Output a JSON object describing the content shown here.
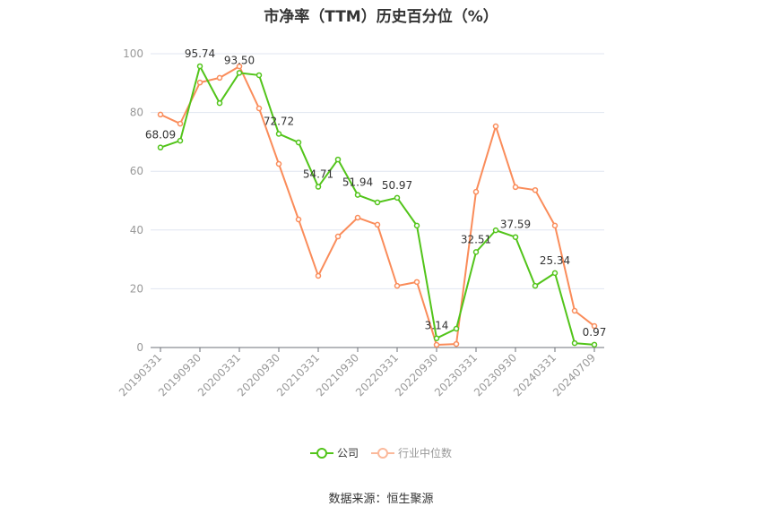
{
  "title": "市净率（TTM）历史百分位（%）",
  "source": "数据来源：恒生聚源",
  "legend": [
    {
      "name": "公司",
      "color": "#52c41a"
    },
    {
      "name": "行业中位数",
      "color": "#fa8c5a"
    }
  ],
  "chart_data": {
    "type": "line",
    "title": "市净率（TTM）历史百分位（%）",
    "xlabel": "",
    "ylabel": "",
    "ylim": [
      0,
      100
    ],
    "yticks": [
      0,
      20,
      40,
      60,
      80,
      100
    ],
    "grid": true,
    "legend_position": "bottom",
    "x_tick_labels": [
      "20190331",
      "20190930",
      "20200331",
      "20200930",
      "20210331",
      "20210930",
      "20220331",
      "20220930",
      "20230331",
      "20230930",
      "20240331",
      "20240709"
    ],
    "x": [
      "20190331",
      "20190630",
      "20190930",
      "20191231",
      "20200331",
      "20200630",
      "20200930",
      "20201231",
      "20210331",
      "20210630",
      "20210930",
      "20211231",
      "20220331",
      "20220630",
      "20220930",
      "20221231",
      "20230331",
      "20230630",
      "20230930",
      "20231231",
      "20240331",
      "20240630",
      "20240709"
    ],
    "series": [
      {
        "name": "公司",
        "color": "#52c41a",
        "values": [
          68.09,
          70.4,
          95.74,
          83.2,
          93.5,
          92.7,
          72.72,
          69.8,
          54.71,
          64.0,
          51.94,
          49.4,
          50.97,
          41.5,
          3.14,
          6.4,
          32.51,
          39.9,
          37.59,
          21.0,
          25.34,
          1.5,
          0.97
        ],
        "labels": {
          "0": "68.09",
          "2": "95.74",
          "4": "93.50",
          "6": "72.72",
          "8": "54.71",
          "10": "51.94",
          "12": "50.97",
          "14": "3.14",
          "16": "32.51",
          "18": "37.59",
          "20": "25.34",
          "22": "0.97"
        }
      },
      {
        "name": "行业中位数",
        "color": "#fa8c5a",
        "values": [
          79.3,
          76.2,
          90.2,
          91.8,
          95.7,
          81.4,
          62.5,
          43.6,
          24.4,
          37.8,
          44.2,
          41.8,
          21.0,
          22.3,
          0.9,
          1.2,
          53.0,
          75.3,
          54.6,
          53.6,
          41.5,
          12.5,
          7.3
        ]
      }
    ]
  }
}
